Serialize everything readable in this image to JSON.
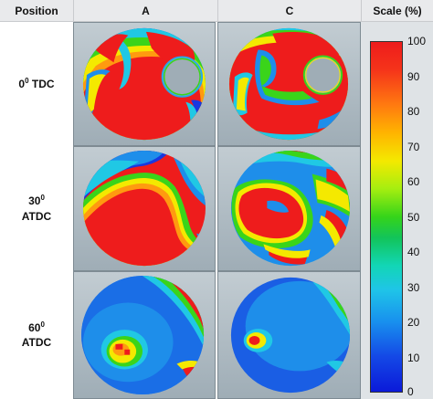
{
  "header": {
    "position_label": "Position",
    "col_a": "A",
    "col_c": "C",
    "scale_label": "Scale (%)"
  },
  "rows": [
    {
      "angle": "0",
      "degree": "0",
      "name": "TDC"
    },
    {
      "angle": "30",
      "degree": "0",
      "name": "ATDC"
    },
    {
      "angle": "60",
      "degree": "0",
      "name": "ATDC"
    }
  ],
  "scale": {
    "ticks": [
      "100",
      "90",
      "80",
      "70",
      "60",
      "50",
      "40",
      "30",
      "20",
      "10",
      "0"
    ],
    "min": 0,
    "max": 100,
    "colors": [
      "#0b1ad9",
      "#1890ee",
      "#1fc4e8",
      "#12d6b6",
      "#12c45a",
      "#35d41a",
      "#a5ee10",
      "#f4e900",
      "#ffb400",
      "#ff7a10",
      "#ee1c1c"
    ]
  }
}
